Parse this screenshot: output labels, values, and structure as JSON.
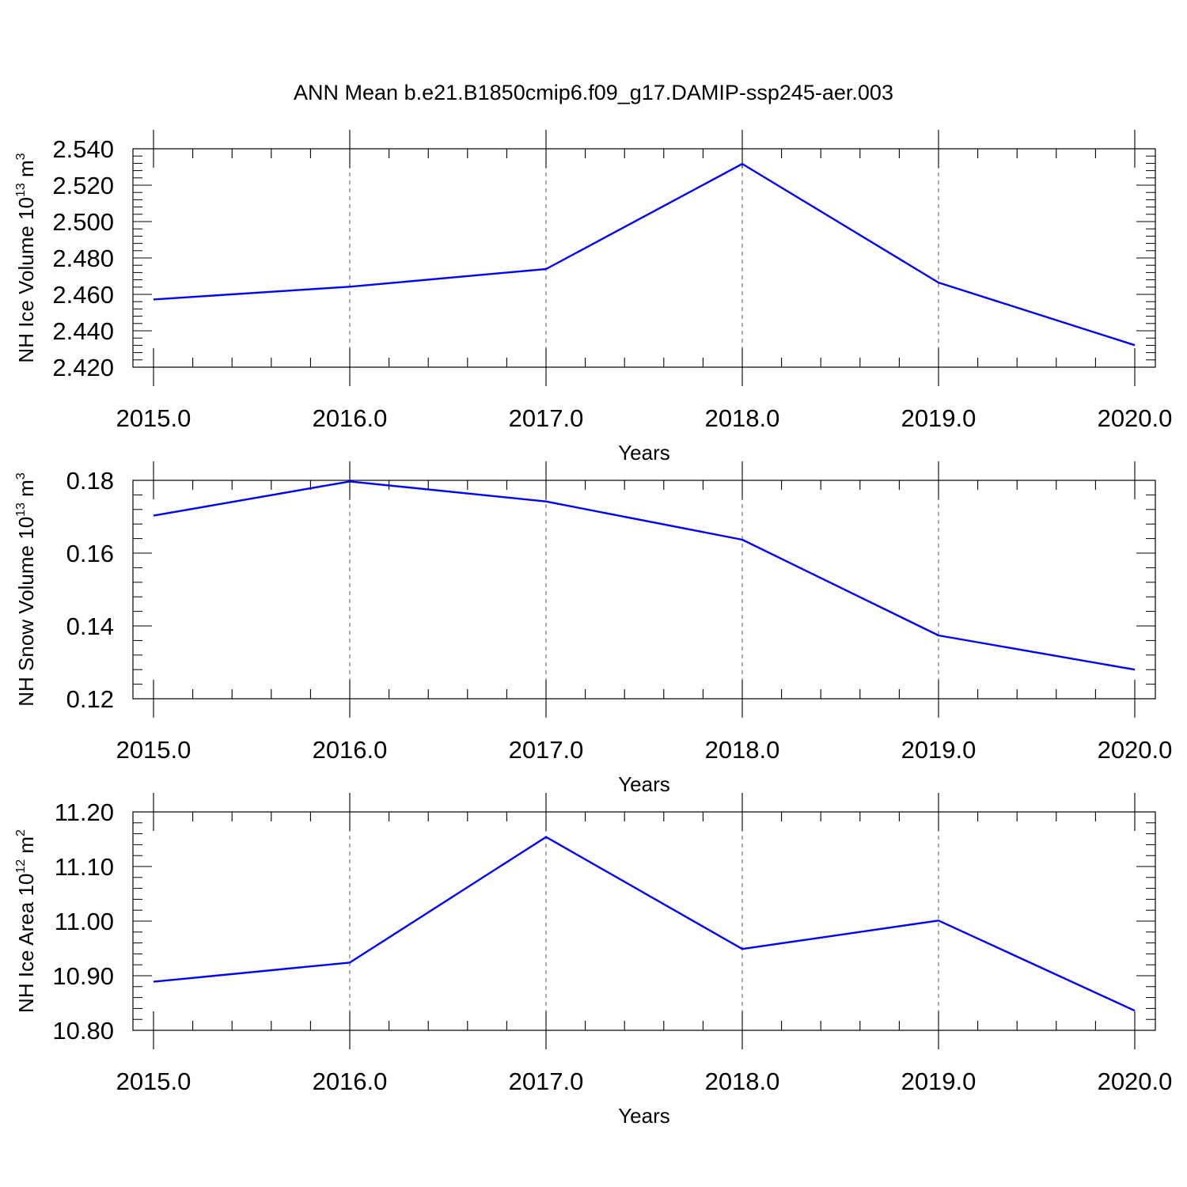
{
  "title": "ANN Mean b.e21.B1850cmip6.f09_g17.DAMIP-ssp245-aer.003",
  "series_color": "#0000ff",
  "chart_data": [
    {
      "type": "line",
      "ylabel": {
        "base": "NH Ice Volume 10",
        "exp": "13",
        "unit": " m",
        "unit_exp": "3"
      },
      "xlabel": "Years",
      "x": [
        2015,
        2016,
        2017,
        2018,
        2019,
        2020
      ],
      "values": [
        2.4572,
        2.4642,
        2.4739,
        2.5317,
        2.4665,
        2.4321
      ],
      "ylim": [
        2.42,
        2.54
      ],
      "yticks": [
        "2.420",
        "2.440",
        "2.460",
        "2.480",
        "2.500",
        "2.520",
        "2.540"
      ],
      "yticks_values": [
        2.42,
        2.44,
        2.46,
        2.48,
        2.5,
        2.52,
        2.54
      ],
      "xticks": [
        "2015.0",
        "2016.0",
        "2017.0",
        "2018.0",
        "2019.0",
        "2020.0"
      ],
      "grid": "vertical dashed"
    },
    {
      "type": "line",
      "ylabel": {
        "base": "NH Snow Volume 10",
        "exp": "13",
        "unit": " m",
        "unit_exp": "3"
      },
      "xlabel": "Years",
      "x": [
        2015,
        2016,
        2017,
        2018,
        2019,
        2020
      ],
      "values": [
        0.1703,
        0.1797,
        0.1742,
        0.1637,
        0.1374,
        0.128
      ],
      "ylim": [
        0.12,
        0.18
      ],
      "yticks": [
        "0.12",
        "0.14",
        "0.16",
        "0.18"
      ],
      "yticks_values": [
        0.12,
        0.14,
        0.16,
        0.18
      ],
      "xticks": [
        "2015.0",
        "2016.0",
        "2017.0",
        "2018.0",
        "2019.0",
        "2020.0"
      ],
      "grid": "vertical dashed"
    },
    {
      "type": "line",
      "ylabel": {
        "base": "NH Ice Area 10",
        "exp": "12",
        "unit": " m",
        "unit_exp": "2"
      },
      "xlabel": "Years",
      "x": [
        2015,
        2016,
        2017,
        2018,
        2019,
        2020
      ],
      "values": [
        10.889,
        10.924,
        11.154,
        10.949,
        11.001,
        10.836
      ],
      "ylim": [
        10.8,
        11.2
      ],
      "yticks": [
        "10.80",
        "10.90",
        "11.00",
        "11.10",
        "11.20"
      ],
      "yticks_values": [
        10.8,
        10.9,
        11.0,
        11.1,
        11.2
      ],
      "xticks": [
        "2015.0",
        "2016.0",
        "2017.0",
        "2018.0",
        "2019.0",
        "2020.0"
      ],
      "grid": "vertical dashed"
    }
  ]
}
